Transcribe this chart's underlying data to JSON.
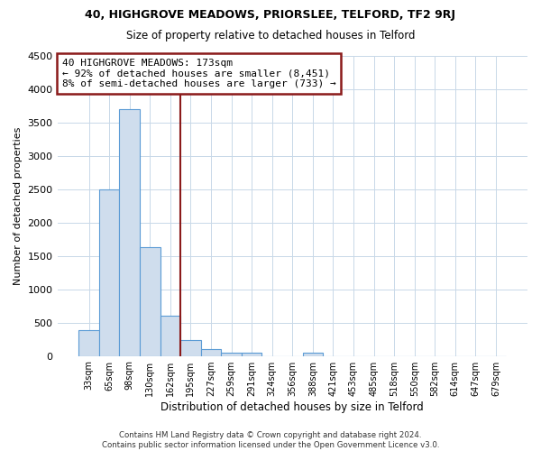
{
  "title": "40, HIGHGROVE MEADOWS, PRIORSLEE, TELFORD, TF2 9RJ",
  "subtitle": "Size of property relative to detached houses in Telford",
  "xlabel": "Distribution of detached houses by size in Telford",
  "ylabel": "Number of detached properties",
  "bar_values": [
    380,
    2500,
    3700,
    1630,
    600,
    240,
    100,
    55,
    55,
    0,
    0,
    55,
    0,
    0,
    0,
    0,
    0,
    0,
    0,
    0,
    0
  ],
  "bin_labels": [
    "33sqm",
    "65sqm",
    "98sqm",
    "130sqm",
    "162sqm",
    "195sqm",
    "227sqm",
    "259sqm",
    "291sqm",
    "324sqm",
    "356sqm",
    "388sqm",
    "421sqm",
    "453sqm",
    "485sqm",
    "518sqm",
    "550sqm",
    "582sqm",
    "614sqm",
    "647sqm",
    "679sqm"
  ],
  "bar_color": "#cfdded",
  "bar_edge_color": "#5b9bd5",
  "vline_color": "#8b1a1a",
  "annotation_text": "40 HIGHGROVE MEADOWS: 173sqm\n← 92% of detached houses are smaller (8,451)\n8% of semi-detached houses are larger (733) →",
  "annotation_box_color": "white",
  "annotation_box_edge_color": "#8b1a1a",
  "ylim": [
    0,
    4500
  ],
  "yticks": [
    0,
    500,
    1000,
    1500,
    2000,
    2500,
    3000,
    3500,
    4000,
    4500
  ],
  "footer": "Contains HM Land Registry data © Crown copyright and database right 2024.\nContains public sector information licensed under the Open Government Licence v3.0.",
  "background_color": "#ffffff",
  "plot_background": "#ffffff",
  "grid_color": "#c8d8e8"
}
